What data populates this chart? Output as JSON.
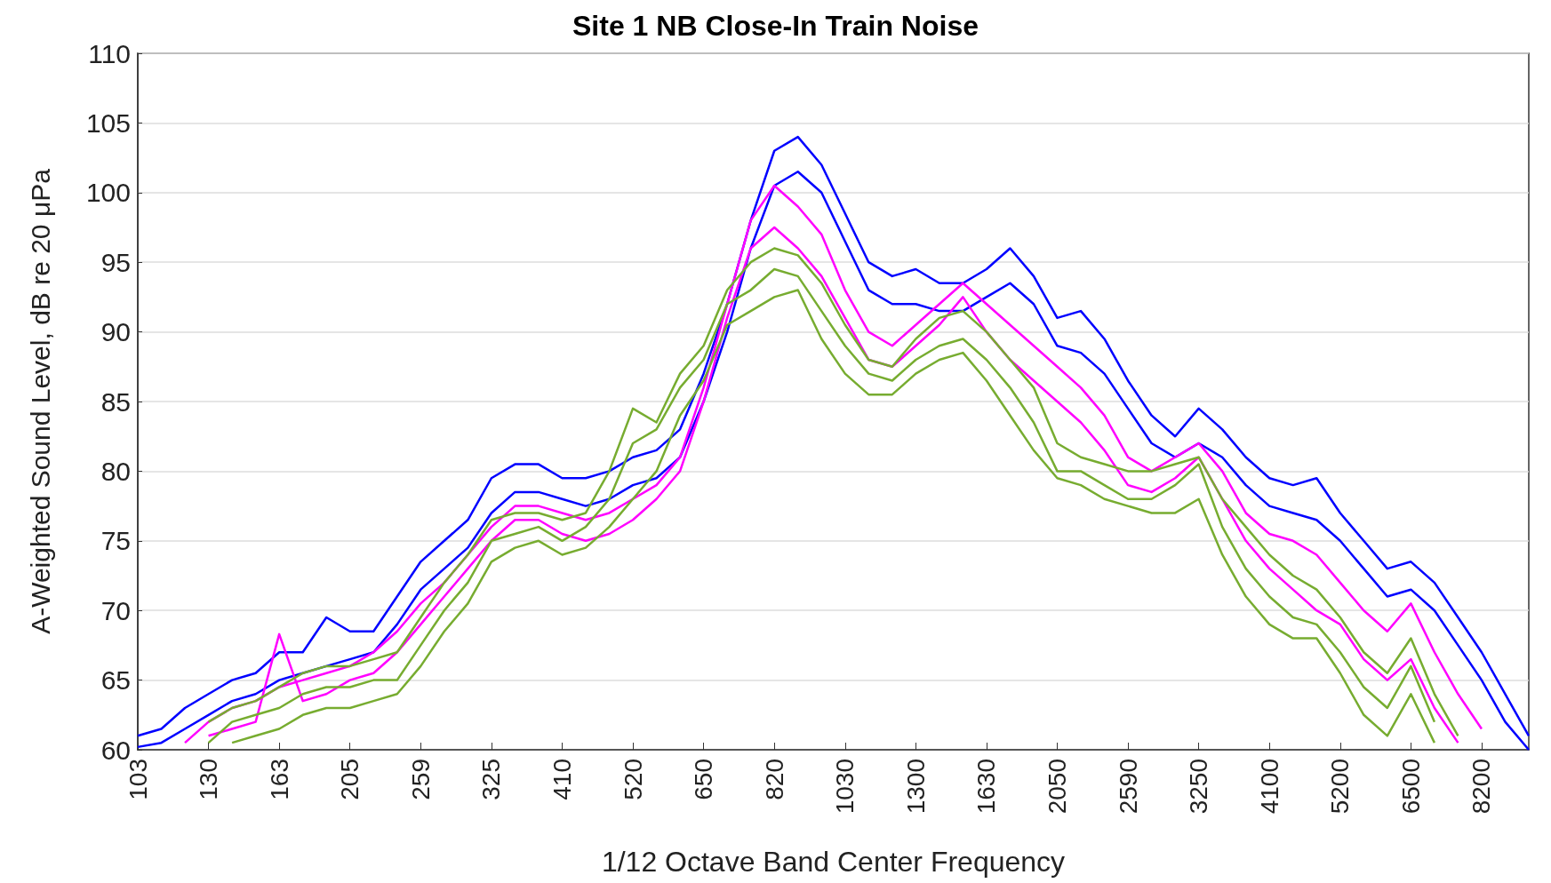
{
  "chart_data": {
    "type": "line",
    "title": "Site 1 NB Close-In Train Noise",
    "xlabel": "1/12 Octave Band Center Frequency",
    "ylabel": "A-Weighted Sound Level, dB re 20 μPa",
    "categories": [
      "103",
      null,
      null,
      "130",
      null,
      null,
      "163",
      null,
      null,
      "205",
      null,
      null,
      "259",
      null,
      null,
      "325",
      null,
      null,
      "410",
      null,
      null,
      "520",
      null,
      null,
      "650",
      null,
      null,
      "820",
      null,
      null,
      "1030",
      null,
      null,
      "1300",
      null,
      null,
      "1630",
      null,
      null,
      "2050",
      null,
      null,
      "2590",
      null,
      null,
      "3250",
      null,
      null,
      "4100",
      null,
      null,
      "5200",
      null,
      null,
      "6500",
      null,
      null,
      "8200",
      null,
      null
    ],
    "ylim": [
      60,
      110
    ],
    "yticks": [
      60,
      65,
      70,
      75,
      80,
      85,
      90,
      95,
      100,
      105,
      110
    ],
    "grid": "y",
    "marker": "none",
    "line_style": "solid",
    "series": [
      {
        "color": "#0000ff",
        "values": [
          61,
          61.5,
          63,
          64,
          65,
          65.5,
          67,
          67,
          69.5,
          68.5,
          68.5,
          71,
          73.5,
          75,
          76.5,
          79.5,
          80.5,
          80.5,
          79.5,
          79.5,
          80,
          81,
          81.5,
          83,
          87,
          92,
          98,
          103,
          104,
          102,
          98.5,
          95,
          94,
          94.5,
          93.5,
          93.5,
          94.5,
          96,
          94,
          91,
          91.5,
          89.5,
          86.5,
          84,
          82.5,
          84.5,
          83,
          81,
          79.5,
          79,
          79.5,
          77,
          75,
          73,
          73.5,
          72,
          69.5,
          67,
          64,
          61
        ]
      },
      {
        "color": "#0000ff",
        "values": [
          60.2,
          60.5,
          61.5,
          62.5,
          63.5,
          64,
          65,
          65.5,
          66,
          66.5,
          67,
          69,
          71.5,
          73,
          74.5,
          77,
          78.5,
          78.5,
          78,
          77.5,
          78,
          79,
          79.5,
          81,
          85,
          90,
          96,
          100.5,
          101.5,
          100,
          96.5,
          93,
          92,
          92,
          91.5,
          91.5,
          92.5,
          93.5,
          92,
          89,
          88.5,
          87,
          84.5,
          82,
          81,
          82,
          81,
          79,
          77.5,
          77,
          76.5,
          75,
          73,
          71,
          71.5,
          70,
          67.5,
          65,
          62,
          60
        ]
      },
      {
        "color": "#ff00ff",
        "values": [
          null,
          null,
          60.5,
          62,
          63,
          63.5,
          64.5,
          65,
          65.5,
          66,
          67,
          68.5,
          70.5,
          72,
          74,
          76,
          77.5,
          77.5,
          77,
          76.5,
          77,
          78,
          79,
          81,
          86,
          92,
          98,
          100.5,
          99,
          97,
          93,
          90,
          89,
          90.5,
          92,
          93.5,
          92,
          90.5,
          89,
          87.5,
          86,
          84,
          81,
          80,
          81,
          82,
          80,
          77,
          75.5,
          75,
          74,
          72,
          70,
          68.5,
          70.5,
          67,
          64,
          61.5,
          null,
          null
        ]
      },
      {
        "color": "#ff00ff",
        "values": [
          null,
          null,
          null,
          61,
          61.5,
          62,
          68.3,
          63.5,
          64,
          65,
          65.5,
          67,
          69,
          71,
          73,
          75,
          76.5,
          76.5,
          75.5,
          75,
          75.5,
          76.5,
          78,
          80,
          85,
          91,
          96,
          97.5,
          96,
          94,
          91,
          88,
          87.5,
          89,
          90.5,
          92.5,
          90,
          88,
          86.5,
          85,
          83.5,
          81.5,
          79,
          78.5,
          79.5,
          81,
          78,
          75,
          73,
          71.5,
          70,
          69,
          66.5,
          65,
          66.5,
          63,
          60.5,
          null,
          null,
          null
        ]
      },
      {
        "color": "#77ac30",
        "values": [
          null,
          null,
          null,
          62,
          63,
          63.5,
          64.5,
          65.5,
          66,
          66,
          66.5,
          67,
          69.5,
          72,
          74,
          76.5,
          77,
          77,
          76.5,
          77,
          80,
          84.5,
          83.5,
          87,
          89,
          93,
          95,
          96,
          95.5,
          93.5,
          90.5,
          88,
          87.5,
          89.5,
          91,
          91.5,
          90,
          88,
          86,
          82,
          81,
          80.5,
          80,
          80,
          80.5,
          81,
          78,
          76,
          74,
          72.5,
          71.5,
          69.5,
          67,
          65.5,
          68,
          64,
          61,
          null,
          null,
          null
        ]
      },
      {
        "color": "#77ac30",
        "values": [
          null,
          null,
          null,
          60.5,
          62,
          62.5,
          63,
          64,
          64.5,
          64.5,
          65,
          65,
          67.5,
          70,
          72,
          75,
          75.5,
          76,
          75,
          76,
          78,
          82,
          83,
          86,
          88,
          92,
          93,
          94.5,
          94,
          91.5,
          89,
          87,
          86.5,
          88,
          89,
          89.5,
          88,
          86,
          83.5,
          80,
          80,
          79,
          78,
          78,
          79,
          80.5,
          76,
          73,
          71,
          69.5,
          69,
          67,
          64.5,
          63,
          66,
          62,
          null,
          null,
          null,
          null
        ]
      },
      {
        "color": "#77ac30",
        "values": [
          null,
          null,
          null,
          null,
          60.5,
          61,
          61.5,
          62.5,
          63,
          63,
          63.5,
          64,
          66,
          68.5,
          70.5,
          73.5,
          74.5,
          75,
          74,
          74.5,
          76,
          78,
          80,
          84,
          86.5,
          90.5,
          91.5,
          92.5,
          93,
          89.5,
          87,
          85.5,
          85.5,
          87,
          88,
          88.5,
          86.5,
          84,
          81.5,
          79.5,
          79,
          78,
          77.5,
          77,
          77,
          78,
          74,
          71,
          69,
          68,
          68,
          65.5,
          62.5,
          61,
          64,
          60.5,
          null,
          null,
          null,
          null
        ]
      }
    ]
  }
}
